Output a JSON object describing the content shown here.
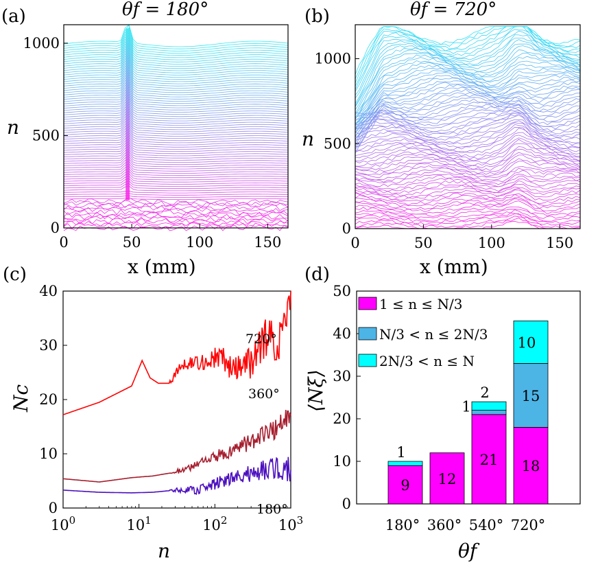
{
  "figure": {
    "colors": {
      "cyan": "#00ffff",
      "magenta": "#ff00ff",
      "steel": "#4db4e6",
      "red": "#ff0000",
      "maroon": "#a51d2d",
      "violet": "#4b0fbf"
    }
  },
  "chart_data": [
    {
      "panel": "(a)",
      "type": "line",
      "title": "θf = 180°",
      "xlabel": "x (mm)",
      "ylabel": "n",
      "xlim": [
        0,
        165
      ],
      "ylim": [
        0,
        1100
      ],
      "xticks": [
        "0",
        "50",
        "100",
        "150"
      ],
      "yticks": [
        "0",
        "500",
        "1000"
      ],
      "description_series": "≈1000 stacked contour lines colored magenta (n=1) to cyan (n=N); vertical streak at x≈47 mm"
    },
    {
      "panel": "(b)",
      "type": "line",
      "title": "θf = 720°",
      "xlabel": "x (mm)",
      "ylabel": "n",
      "xlim": [
        0,
        165
      ],
      "ylim": [
        0,
        1200
      ],
      "xticks": [
        "0",
        "50",
        "100",
        "150"
      ],
      "yticks": [
        "0",
        "500",
        "1000"
      ]
    },
    {
      "panel": "(c)",
      "type": "line",
      "xlabel": "n",
      "ylabel": "Nc",
      "xscale": "log",
      "xlim": [
        1,
        1000
      ],
      "ylim": [
        0,
        40
      ],
      "xticks": [
        "10^0",
        "10^1",
        "10^2",
        "10^3"
      ],
      "yticks": [
        "0",
        "10",
        "20",
        "30",
        "40"
      ],
      "series": [
        {
          "name": "720°",
          "color": "#ff0000",
          "x": [
            1,
            3,
            8,
            11,
            14,
            18,
            25,
            35,
            50,
            80,
            120,
            180,
            300,
            500,
            700,
            1000
          ],
          "y": [
            17.2,
            19.5,
            22.5,
            27.2,
            24,
            23,
            23,
            26,
            27,
            27,
            28,
            25,
            27,
            32,
            30,
            40
          ]
        },
        {
          "name": "360°",
          "color": "#a51d2d",
          "x": [
            1,
            3,
            8,
            15,
            30,
            60,
            100,
            200,
            400,
            700,
            1000
          ],
          "y": [
            5.4,
            4.8,
            5.6,
            5.9,
            6.6,
            8,
            9.5,
            11,
            13,
            15,
            17
          ]
        },
        {
          "name": "180°",
          "color": "#4b0fbf",
          "x": [
            1,
            3,
            8,
            15,
            30,
            60,
            100,
            200,
            400,
            700,
            1000
          ],
          "y": [
            3.3,
            2.9,
            2.8,
            2.9,
            3.3,
            3.3,
            4.5,
            5.5,
            7,
            7.5,
            7
          ]
        }
      ]
    },
    {
      "panel": "(d)",
      "type": "bar",
      "stacked": true,
      "xlabel": "θf",
      "ylabel": "⟨Nξ⟩",
      "ylim": [
        0,
        50
      ],
      "yticks": [
        "0",
        "10",
        "20",
        "30",
        "40",
        "50"
      ],
      "categories": [
        "180°",
        "360°",
        "540°",
        "720°"
      ],
      "series": [
        {
          "name": "1 ≤ n ≤ N/3",
          "color": "#ff00ff",
          "values": [
            9,
            12,
            21,
            18
          ]
        },
        {
          "name": "N/3 < n ≤ 2N/3",
          "color": "#4db4e6",
          "values": [
            0,
            0,
            1,
            15
          ]
        },
        {
          "name": "2N/3 < n ≤ N",
          "color": "#00ffff",
          "values": [
            1,
            0,
            2,
            10
          ]
        }
      ],
      "labels": {
        "bottom": [
          "9",
          "12",
          "21",
          "18"
        ],
        "mid": [
          "",
          "",
          "1",
          "15"
        ],
        "top": [
          "1",
          "",
          "2",
          "10"
        ]
      }
    }
  ]
}
